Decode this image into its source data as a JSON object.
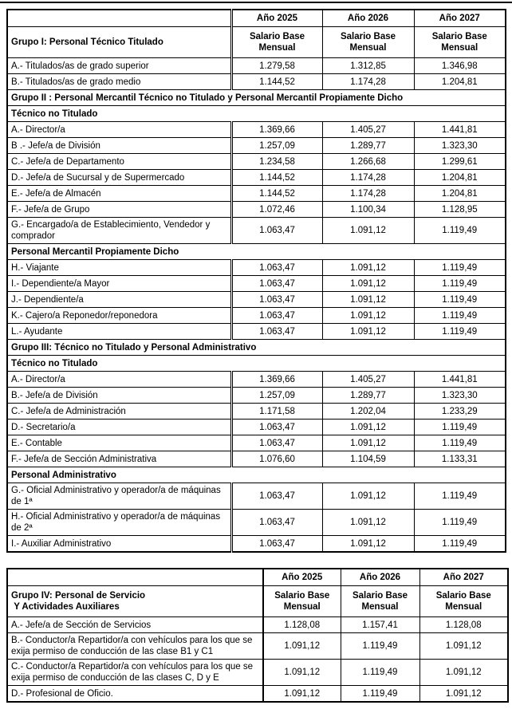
{
  "page": {
    "kind": "salary-tables-document",
    "text_color": "#000000",
    "border_color": "#000000",
    "background_color": "#ffffff"
  },
  "tables": [
    {
      "name": "grupos-1-2-3",
      "years": [
        "Año 2025",
        "Año 2026",
        "Año 2027"
      ],
      "salary_column_header": "Salario Base\nMensual",
      "group_label": "Grupo I: Personal Técnico Titulado",
      "rows": [
        {
          "type": "data",
          "label": "A.- Titulados/as de grado superior",
          "values": [
            "1.279,58",
            "1.312,85",
            "1.346,98"
          ]
        },
        {
          "type": "data",
          "label": "B.- Titulados/as de grado medio",
          "values": [
            "1.144,52",
            "1.174,28",
            "1.204,81"
          ]
        },
        {
          "type": "section",
          "label": "Grupo II : Personal Mercantil Técnico no Titulado y Personal Mercantil Propiamente Dicho"
        },
        {
          "type": "section",
          "label": "Técnico no Titulado"
        },
        {
          "type": "data",
          "label": "A.- Director/a",
          "values": [
            "1.369,66",
            "1.405,27",
            "1.441,81"
          ]
        },
        {
          "type": "data",
          "label": "B .- Jefe/a de División",
          "values": [
            "1.257,09",
            "1.289,77",
            "1.323,30"
          ]
        },
        {
          "type": "data",
          "label": "C.- Jefe/a de Departamento",
          "values": [
            "1.234,58",
            "1.266,68",
            "1.299,61"
          ]
        },
        {
          "type": "data",
          "label": "D.- Jefe/a de Sucursal y de Supermercado",
          "values": [
            "1.144,52",
            "1.174,28",
            "1.204,81"
          ]
        },
        {
          "type": "data",
          "label": "E.- Jefe/a de Almacén",
          "values": [
            "1.144,52",
            "1.174,28",
            "1.204,81"
          ]
        },
        {
          "type": "data",
          "label": "F.- Jefe/a de Grupo",
          "values": [
            "1.072,46",
            "1.100,34",
            "1.128,95"
          ]
        },
        {
          "type": "data",
          "label": "G.- Encargado/a de Establecimiento, Vendedor y comprador",
          "values": [
            "1.063,47",
            "1.091,12",
            "1.119,49"
          ]
        },
        {
          "type": "section",
          "label": "Personal Mercantil Propiamente Dicho"
        },
        {
          "type": "data",
          "label": "H.- Viajante",
          "values": [
            "1.063,47",
            "1.091,12",
            "1.119,49"
          ]
        },
        {
          "type": "data",
          "label": "I.- Dependiente/a Mayor",
          "values": [
            "1.063,47",
            "1.091,12",
            "1.119,49"
          ]
        },
        {
          "type": "data",
          "label": "J.- Dependiente/a",
          "values": [
            "1.063,47",
            "1.091,12",
            "1.119,49"
          ]
        },
        {
          "type": "data",
          "label": "K.- Cajero/a Reponedor/reponedora",
          "values": [
            "1.063,47",
            "1.091,12",
            "1.119,49"
          ]
        },
        {
          "type": "data",
          "label": "L.- Ayudante",
          "values": [
            "1.063,47",
            "1.091,12",
            "1.119,49"
          ]
        },
        {
          "type": "section",
          "label": "Grupo III: Técnico no Titulado y Personal Administrativo"
        },
        {
          "type": "section",
          "label": "Técnico no Titulado"
        },
        {
          "type": "data",
          "label": "A.- Director/a",
          "values": [
            "1.369,66",
            "1.405,27",
            "1.441,81"
          ]
        },
        {
          "type": "data",
          "label": "B.- Jefe/a de División",
          "values": [
            "1.257,09",
            "1.289,77",
            "1.323,30"
          ]
        },
        {
          "type": "data",
          "label": "C.- Jefe/a de Administración",
          "values": [
            "1.171,58",
            "1.202,04",
            "1.233,29"
          ]
        },
        {
          "type": "data",
          "label": "D.- Secretario/a",
          "values": [
            "1.063,47",
            "1.091,12",
            "1.119,49"
          ]
        },
        {
          "type": "data",
          "label": "E.- Contable",
          "values": [
            "1.063,47",
            "1.091,12",
            "1.119,49"
          ]
        },
        {
          "type": "data",
          "label": "F.- Jefe/a de Sección Administrativa",
          "values": [
            "1.076,60",
            "1.104,59",
            "1.133,31"
          ]
        },
        {
          "type": "section",
          "label": "Personal Administrativo"
        },
        {
          "type": "data",
          "label": "G.- Oficial Administrativo y operador/a de máquinas de 1ª",
          "values": [
            "1.063,47",
            "1.091,12",
            "1.119,49"
          ]
        },
        {
          "type": "data",
          "label": "H.- Oficial Administrativo y operador/a de máquinas de 2ª",
          "values": [
            "1.063,47",
            "1.091,12",
            "1.119,49"
          ]
        },
        {
          "type": "data",
          "label": "I.- Auxiliar Administrativo",
          "values": [
            "1.063,47",
            "1.091,12",
            "1.119,49"
          ]
        }
      ]
    },
    {
      "name": "grupo-4",
      "years": [
        "Año 2025",
        "Año 2026",
        "Año 2027"
      ],
      "salary_column_header": "Salario Base\nMensual",
      "group_label": "Grupo IV: Personal de Servicio\n Y Actividades Auxiliares",
      "rows": [
        {
          "type": "data",
          "label": "A.- Jefe/a de Sección de Servicios",
          "values": [
            "1.128,08",
            "1.157,41",
            "1.128,08"
          ]
        },
        {
          "type": "data",
          "label": "B.- Conductor/a Repartidor/a con vehículos para los que se exija permiso de conducción de las clase B1 y C1",
          "values": [
            "1.091,12",
            "1.119,49",
            "1.091,12"
          ]
        },
        {
          "type": "data",
          "label": "C.- Conductor/a Repartidor/a con vehículos para los que se exija permiso de conducción de las clases C, D y E",
          "values": [
            "1.091,12",
            "1.119,49",
            "1.091,12"
          ]
        },
        {
          "type": "data",
          "label": "D.- Profesional de Oficio.",
          "values": [
            "1.091,12",
            "1.119,49",
            "1.091,12"
          ]
        }
      ]
    }
  ]
}
